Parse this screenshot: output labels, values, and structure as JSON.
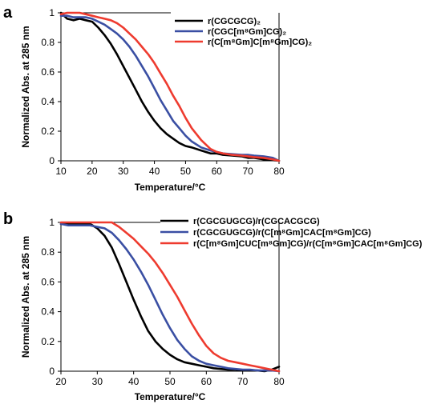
{
  "chart_data": [
    {
      "panel": "a",
      "type": "line",
      "xlabel": "Temperature/°C",
      "ylabel": "Normalized Abs. at 285 nm",
      "xlim": [
        10,
        80
      ],
      "ylim": [
        0,
        1
      ],
      "x_ticks": [
        10,
        20,
        30,
        40,
        50,
        60,
        70,
        80
      ],
      "y_ticks": [
        0,
        0.2,
        0.4,
        0.6,
        0.8,
        1
      ],
      "legend": "top-right",
      "grid": false,
      "series": [
        {
          "name": "r(CGCGCG)₂",
          "color": "#000000",
          "x": [
            10,
            12,
            14,
            16,
            18,
            20,
            22,
            24,
            26,
            28,
            30,
            32,
            34,
            36,
            38,
            40,
            42,
            44,
            46,
            48,
            50,
            52,
            55,
            58,
            60,
            62,
            65,
            68,
            70,
            72,
            75,
            78,
            80
          ],
          "y": [
            1.0,
            0.96,
            0.95,
            0.96,
            0.95,
            0.94,
            0.9,
            0.85,
            0.79,
            0.72,
            0.64,
            0.56,
            0.48,
            0.4,
            0.33,
            0.27,
            0.22,
            0.18,
            0.15,
            0.12,
            0.1,
            0.09,
            0.07,
            0.05,
            0.05,
            0.04,
            0.035,
            0.03,
            0.02,
            0.02,
            0.01,
            0.005,
            0.0
          ]
        },
        {
          "name": "r(CGC[m⁸Gm]CG)₂",
          "color": "#3a4fa3",
          "x": [
            10,
            12,
            14,
            16,
            18,
            20,
            22,
            24,
            26,
            28,
            30,
            32,
            34,
            36,
            38,
            40,
            42,
            44,
            46,
            48,
            50,
            52,
            55,
            58,
            60,
            62,
            65,
            68,
            70,
            72,
            75,
            78,
            80
          ],
          "y": [
            0.98,
            0.98,
            0.97,
            0.97,
            0.97,
            0.96,
            0.94,
            0.92,
            0.89,
            0.86,
            0.82,
            0.77,
            0.71,
            0.64,
            0.57,
            0.49,
            0.41,
            0.34,
            0.27,
            0.22,
            0.17,
            0.13,
            0.09,
            0.07,
            0.06,
            0.05,
            0.045,
            0.04,
            0.04,
            0.035,
            0.03,
            0.02,
            0.0
          ]
        },
        {
          "name": "r(C[m⁸Gm]C[m⁸Gm]CG)₂",
          "color": "#ee3b2f",
          "x": [
            10,
            12,
            14,
            16,
            18,
            20,
            22,
            24,
            26,
            28,
            30,
            32,
            34,
            36,
            38,
            40,
            42,
            44,
            46,
            48,
            50,
            52,
            55,
            58,
            60,
            62,
            65,
            68,
            70,
            72,
            75,
            78,
            80
          ],
          "y": [
            0.99,
            1.0,
            1.0,
            1.0,
            0.99,
            0.98,
            0.97,
            0.96,
            0.95,
            0.93,
            0.9,
            0.86,
            0.82,
            0.77,
            0.72,
            0.66,
            0.59,
            0.52,
            0.44,
            0.37,
            0.29,
            0.22,
            0.14,
            0.08,
            0.06,
            0.05,
            0.04,
            0.035,
            0.03,
            0.025,
            0.02,
            0.01,
            0.0
          ]
        }
      ]
    },
    {
      "panel": "b",
      "type": "line",
      "xlabel": "Temperature/°C",
      "ylabel": "Normalized Abs. at 285 nm",
      "xlim": [
        20,
        80
      ],
      "ylim": [
        0,
        1
      ],
      "x_ticks": [
        20,
        30,
        40,
        50,
        60,
        70,
        80
      ],
      "y_ticks": [
        0,
        0.2,
        0.4,
        0.6,
        0.8,
        1
      ],
      "legend": "top-right",
      "grid": false,
      "series": [
        {
          "name": "r(CGCGUGCG)/r(CGCACGCG)",
          "color": "#000000",
          "x": [
            20,
            22,
            24,
            26,
            28,
            30,
            32,
            34,
            36,
            38,
            40,
            42,
            44,
            46,
            48,
            50,
            52,
            54,
            56,
            58,
            60,
            62,
            64,
            66,
            68,
            70,
            72,
            74,
            76,
            78,
            80
          ],
          "y": [
            0.99,
            0.99,
            0.99,
            0.99,
            0.99,
            0.96,
            0.91,
            0.83,
            0.72,
            0.6,
            0.48,
            0.37,
            0.27,
            0.2,
            0.15,
            0.11,
            0.08,
            0.06,
            0.05,
            0.04,
            0.03,
            0.02,
            0.015,
            0.01,
            0.01,
            0.005,
            0.005,
            0.005,
            0.0,
            0.01,
            0.03
          ]
        },
        {
          "name": "r(CGCGUGCG)/r(C[m⁸Gm]CAC[m⁸Gm]CG)",
          "color": "#3a4fa3",
          "x": [
            20,
            22,
            24,
            26,
            28,
            30,
            32,
            34,
            36,
            38,
            40,
            42,
            44,
            46,
            48,
            50,
            52,
            54,
            56,
            58,
            60,
            62,
            64,
            66,
            68,
            70,
            72,
            74,
            76,
            78,
            80
          ],
          "y": [
            0.99,
            0.98,
            0.98,
            0.98,
            0.98,
            0.97,
            0.96,
            0.93,
            0.88,
            0.82,
            0.75,
            0.67,
            0.58,
            0.48,
            0.38,
            0.29,
            0.21,
            0.15,
            0.1,
            0.07,
            0.05,
            0.04,
            0.03,
            0.02,
            0.015,
            0.01,
            0.01,
            0.005,
            0.005,
            0.005,
            0.0
          ]
        },
        {
          "name": "r(C[m⁸Gm]CUC[m⁸Gm]CG)/r(C[m⁸Gm]CAC[m⁸Gm]CG)",
          "color": "#ee3b2f",
          "x": [
            20,
            22,
            24,
            26,
            28,
            30,
            32,
            34,
            36,
            38,
            40,
            42,
            44,
            46,
            48,
            50,
            52,
            54,
            56,
            58,
            60,
            62,
            64,
            66,
            68,
            70,
            72,
            74,
            76,
            78,
            80
          ],
          "y": [
            1.0,
            1.0,
            1.0,
            1.0,
            1.0,
            1.0,
            1.0,
            1.0,
            0.97,
            0.93,
            0.89,
            0.84,
            0.79,
            0.73,
            0.66,
            0.58,
            0.5,
            0.41,
            0.32,
            0.24,
            0.17,
            0.12,
            0.09,
            0.07,
            0.06,
            0.05,
            0.04,
            0.03,
            0.02,
            0.01,
            0.0
          ]
        }
      ]
    }
  ]
}
